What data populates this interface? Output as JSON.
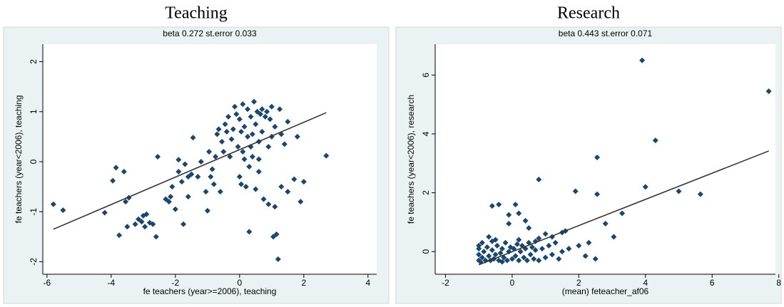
{
  "chart_data": [
    {
      "type": "scatter",
      "title": "Teaching",
      "subtitle": "beta 0.272 st.error 0.033",
      "x_label": "fe teachers (year>=2006), teaching",
      "y_label": "fe teachers (year<2006), teaching",
      "color": "#1a476f",
      "x": [
        -5.8,
        -5.5,
        -4.2,
        -3.95,
        -3.85,
        -3.75,
        -3.6,
        -3.55,
        -3.45,
        -3.5,
        -3.25,
        -3.15,
        -3.05,
        -3.0,
        -2.9,
        -2.95,
        -2.8,
        -2.7,
        -2.6,
        -2.55,
        -2.3,
        -2.2,
        -2.15,
        -1.9,
        -1.75,
        -1.6,
        -1.45,
        -1.8,
        -1.6,
        -1.5,
        -1.3,
        -1.0,
        -0.9,
        -0.85,
        -0.8,
        -0.75,
        -0.7,
        -0.65,
        -0.6,
        -0.55,
        -0.5,
        -0.45,
        -0.4,
        -0.35,
        -0.3,
        -0.25,
        -0.2,
        -0.15,
        -0.1,
        -0.05,
        0,
        0,
        0.05,
        0.1,
        0.1,
        0.15,
        0.2,
        0.25,
        0.25,
        0.3,
        0.3,
        0.35,
        0.4,
        0.4,
        0.45,
        0.5,
        0.5,
        0.55,
        0.6,
        0.6,
        0.65,
        0.7,
        0.7,
        0.75,
        0.8,
        0.85,
        0.9,
        0.9,
        0.95,
        1.0,
        1.0,
        1.05,
        1.1,
        1.15,
        1.2,
        1.25,
        1.3,
        1.3,
        1.4,
        1.5,
        1.5,
        1.7,
        1.8,
        1.9,
        2.0,
        2.7,
        -2.0,
        -2.1,
        -1.9,
        -1.7,
        -1.2,
        -1.05,
        -0.95,
        0.05,
        0.15,
        1.1,
        0.6,
        0.35
      ],
      "values": [
        -0.85,
        -0.97,
        -1.02,
        -0.38,
        -0.12,
        -1.47,
        -0.2,
        -0.8,
        -0.72,
        -1.3,
        -1.25,
        -1.15,
        -1.2,
        -1.08,
        -1.05,
        -1.3,
        -1.22,
        -1.25,
        -1.5,
        0.1,
        -0.75,
        -0.8,
        -0.7,
        0.04,
        -1.25,
        -0.3,
        0.48,
        -0.4,
        -0.7,
        -0.25,
        -0.3,
        -0.98,
        -0.3,
        -0.15,
        -0.45,
        0.1,
        0.55,
        0.65,
        -0.6,
        0.4,
        0.2,
        0.75,
        0.6,
        0.9,
        0.1,
        0.45,
        0.65,
        1.1,
        0.95,
        0.3,
        0.85,
        -0.3,
        0.6,
        1.15,
        0.2,
        0.7,
        -0.5,
        1.05,
        0.5,
        -0.1,
        -1.4,
        0.9,
        0.55,
        0.1,
        1.2,
        0.75,
        -0.55,
        1.0,
        0.4,
        -0.2,
        0.95,
        1.05,
        0.6,
        -0.75,
        0.9,
        1.0,
        -0.85,
        0.3,
        0.85,
        1.1,
        0.5,
        -1.5,
        0.7,
        -1.45,
        -1.95,
        1.05,
        0.55,
        -0.5,
        0.35,
        -0.6,
        0.8,
        -0.35,
        0.5,
        -0.8,
        -0.4,
        0.12,
        -0.95,
        -0.5,
        -0.2,
        -0.05,
        0.0,
        -0.6,
        0.2,
        -0.45,
        0.05,
        -0.9,
        0.05,
        0.3
      ],
      "fit_line": {
        "x": [
          -5.8,
          2.7
        ],
        "values": [
          -1.35,
          0.98
        ],
        "color": "#333333"
      },
      "xlim": [
        -6.13,
        4.27
      ],
      "ylim": [
        -2.25,
        2.35
      ],
      "xticks": [
        -6,
        -4,
        -2,
        0,
        2,
        4
      ],
      "yticks": [
        -2,
        -1,
        0,
        1,
        2
      ]
    },
    {
      "type": "scatter",
      "title": "Research",
      "subtitle": "beta 0.443 st.error 0.071",
      "x_label": "(mean) feteacher_af06",
      "y_label": "fe teachers (year<2006), research",
      "color": "#1a476f",
      "x": [
        3.9,
        7.7,
        4.3,
        2.55,
        4.0,
        0.8,
        1.9,
        2.55,
        5.0,
        5.65,
        3.3,
        3.05,
        2.8,
        2.3,
        2.5,
        2.0,
        1.6,
        -0.4,
        -0.6,
        0.1,
        -0.1,
        0.2,
        0.4,
        -0.1,
        0.5,
        -0.7,
        -0.5,
        0.8,
        1.0,
        1.2,
        1.5,
        1.3,
        2.2,
        1.7,
        -1,
        -1,
        -1,
        -1,
        -0.95,
        -0.9,
        -0.85,
        -0.8,
        -0.75,
        -0.7,
        -0.65,
        -0.6,
        -0.55,
        -0.5,
        -0.45,
        -0.4,
        -0.35,
        -0.3,
        -0.25,
        -0.2,
        -0.15,
        -0.1,
        -0.05,
        0,
        0.05,
        0.1,
        0.15,
        0.2,
        0.25,
        0.3,
        0.35,
        0.4,
        0.45,
        0.5,
        0.55,
        0.6,
        0.65,
        0.7,
        0.8,
        0.9,
        1.0,
        1.1,
        1.2,
        1.4,
        -0.9,
        -0.6,
        -0.3,
        0.2,
        0.7,
        1.5
      ],
      "values": [
        6.5,
        5.45,
        3.78,
        3.2,
        2.2,
        2.45,
        2.05,
        1.95,
        2.05,
        1.95,
        1.3,
        0.5,
        0.95,
        0.3,
        -0.25,
        0.2,
        0.7,
        1.6,
        1.55,
        1.6,
        1.25,
        1.3,
        1.05,
        0.95,
        0.8,
        0.5,
        0.4,
        0.45,
        0.6,
        0.5,
        0.65,
        0.3,
        -0.15,
        0.1,
        -0.3,
        -0.1,
        0.1,
        0.2,
        -0.35,
        -0.2,
        0,
        -0.3,
        0.15,
        -0.15,
        -0.3,
        0.05,
        -0.25,
        -0.1,
        0.2,
        -0.3,
        -0.05,
        0.1,
        -0.2,
        0.3,
        -0.3,
        0,
        0.15,
        -0.25,
        0.1,
        -0.15,
        0.25,
        -0.3,
        0,
        0.2,
        -0.2,
        0.1,
        -0.3,
        0.3,
        -0.1,
        0.15,
        -0.25,
        0.05,
        -0.3,
        0.1,
        -0.2,
        0.2,
        -0.1,
        -0.25,
        0.3,
        0.35,
        -0.35,
        0.4,
        0.35,
        0
      ],
      "fit_line": {
        "x": [
          -1.0,
          7.7
        ],
        "values": [
          -0.45,
          3.42
        ],
        "color": "#333333"
      },
      "xlim": [
        -2.31,
        7.9
      ],
      "ylim": [
        -0.77,
        7.05
      ],
      "xticks": [
        -2,
        0,
        2,
        4,
        6,
        8
      ],
      "yticks": [
        0,
        2,
        4,
        6
      ]
    }
  ]
}
